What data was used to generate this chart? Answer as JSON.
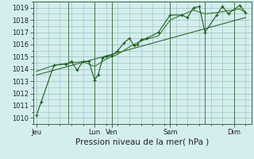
{
  "xlabel": "Pression niveau de la mer( hPa )",
  "background_color": "#d4eeee",
  "grid_color": "#99bbbb",
  "line_color_main": "#1a5c1a",
  "line_color_smooth": "#2d7a2d",
  "line_color_trend": "#336633",
  "ylim": [
    1009.5,
    1019.5
  ],
  "yticks": [
    1010,
    1011,
    1012,
    1013,
    1014,
    1015,
    1016,
    1017,
    1018,
    1019
  ],
  "xtick_labels": [
    "Jeu",
    "Lun",
    "Ven",
    "Sam",
    "Dim"
  ],
  "xtick_positions": [
    0,
    5,
    6.5,
    11.5,
    17
  ],
  "xlim": [
    -0.3,
    18.5
  ],
  "series_main_x": [
    0,
    0.4,
    1.5,
    2.5,
    3.0,
    3.5,
    4.0,
    4.5,
    5.0,
    5.3,
    5.7,
    6.0,
    6.5,
    7.0,
    7.5,
    8.0,
    8.4,
    8.7,
    9.0,
    9.5,
    10.5,
    11.5,
    12.5,
    13.0,
    13.5,
    14.0,
    14.5,
    15.5,
    16.0,
    16.5,
    17.5,
    18.0
  ],
  "series_main_y": [
    1010.2,
    1011.3,
    1014.3,
    1014.4,
    1014.6,
    1013.9,
    1014.6,
    1014.6,
    1013.1,
    1013.5,
    1014.9,
    1015.0,
    1015.1,
    1015.5,
    1016.1,
    1016.5,
    1015.9,
    1016.0,
    1016.4,
    1016.5,
    1017.0,
    1018.4,
    1018.4,
    1018.2,
    1019.0,
    1019.1,
    1017.0,
    1018.4,
    1019.1,
    1018.5,
    1019.2,
    1018.6
  ],
  "series_smooth_x": [
    0,
    1.5,
    3.0,
    4.0,
    5.0,
    6.0,
    7.0,
    8.0,
    9.0,
    10.5,
    11.5,
    12.5,
    13.5,
    14.5,
    15.5,
    17.5,
    18.0
  ],
  "series_smooth_y": [
    1013.8,
    1014.3,
    1014.5,
    1014.6,
    1014.2,
    1014.8,
    1015.2,
    1015.8,
    1016.3,
    1016.7,
    1018.0,
    1018.4,
    1018.8,
    1018.5,
    1018.6,
    1018.9,
    1018.6
  ],
  "trend_x": [
    0,
    18.0
  ],
  "trend_y": [
    1013.5,
    1018.2
  ],
  "vline_positions": [
    2.7,
    5.0,
    6.5,
    11.5,
    14.5,
    17.0
  ],
  "figsize": [
    3.2,
    2.0
  ],
  "dpi": 100,
  "tick_fontsize": 6,
  "xlabel_fontsize": 7.5,
  "marker_size": 2.0,
  "line_width": 0.8
}
